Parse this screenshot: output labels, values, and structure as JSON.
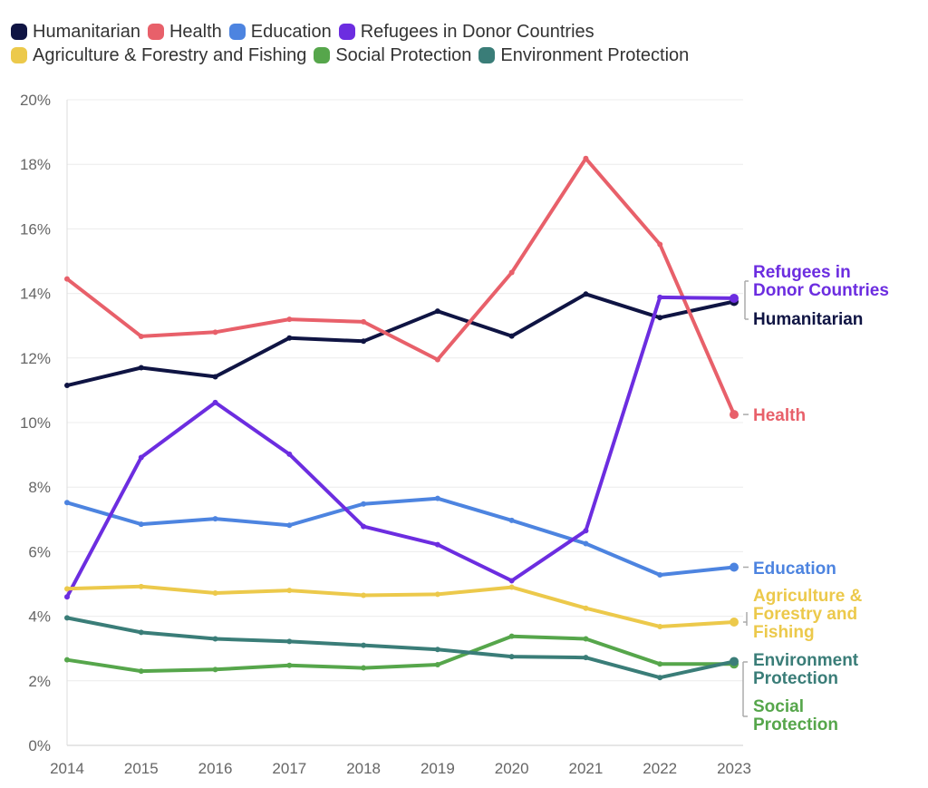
{
  "chart_data": {
    "type": "line",
    "title": "",
    "xlabel": "",
    "ylabel": "",
    "x": [
      2014,
      2015,
      2016,
      2017,
      2018,
      2019,
      2020,
      2021,
      2022,
      2023
    ],
    "ylim": [
      0,
      20
    ],
    "y_ticks": [
      "0%",
      "2%",
      "4%",
      "6%",
      "8%",
      "10%",
      "12%",
      "14%",
      "16%",
      "18%",
      "20%"
    ],
    "grid": "horizontal",
    "legend_position": "top-left",
    "series": [
      {
        "name": "Humanitarian",
        "color": "#0f1443",
        "end_label": [
          "Humanitarian"
        ],
        "values": [
          11.15,
          11.7,
          11.42,
          12.62,
          12.52,
          13.45,
          12.68,
          13.98,
          13.25,
          13.75
        ]
      },
      {
        "name": "Health",
        "color": "#e8606a",
        "end_label": [
          "Health"
        ],
        "values": [
          14.45,
          12.67,
          12.8,
          13.2,
          13.12,
          11.95,
          14.65,
          18.18,
          15.52,
          10.25
        ]
      },
      {
        "name": "Education",
        "color": "#4d84e0",
        "end_label": [
          "Education"
        ],
        "values": [
          7.52,
          6.85,
          7.02,
          6.82,
          7.48,
          7.65,
          6.97,
          6.25,
          5.28,
          5.52
        ]
      },
      {
        "name": "Refugees in Donor Countries",
        "color": "#6c2de0",
        "end_label": [
          "Refugees in",
          "Donor Countries"
        ],
        "values": [
          4.6,
          8.92,
          10.62,
          9.02,
          6.78,
          6.22,
          5.1,
          6.65,
          13.88,
          13.85
        ]
      },
      {
        "name": "Agriculture & Forestry and Fishing",
        "color": "#ecc94b",
        "end_label": [
          "Agriculture &",
          "Forestry and",
          "Fishing"
        ],
        "values": [
          4.85,
          4.92,
          4.72,
          4.8,
          4.65,
          4.68,
          4.9,
          4.25,
          3.68,
          3.82
        ]
      },
      {
        "name": "Social Protection",
        "color": "#56a64b",
        "end_label": [
          "Social",
          "Protection"
        ],
        "values": [
          2.65,
          2.3,
          2.35,
          2.48,
          2.4,
          2.5,
          3.38,
          3.3,
          2.52,
          2.52
        ]
      },
      {
        "name": "Environment Protection",
        "color": "#3a7d78",
        "end_label": [
          "Environment",
          "Protection"
        ],
        "values": [
          3.95,
          3.5,
          3.3,
          3.22,
          3.1,
          2.97,
          2.75,
          2.72,
          2.1,
          2.6
        ]
      }
    ]
  }
}
